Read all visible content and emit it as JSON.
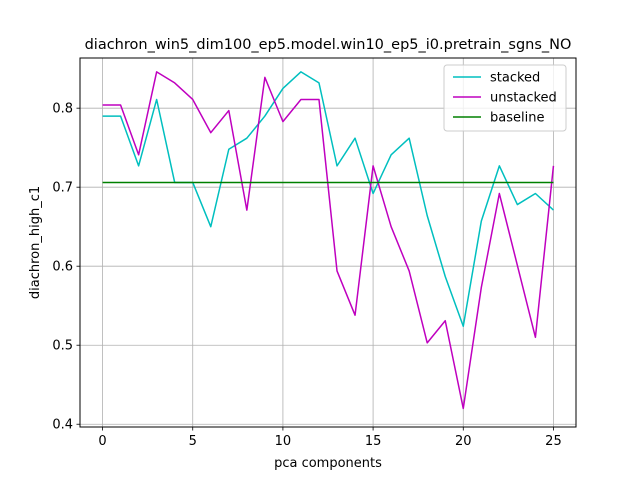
{
  "chart_data": {
    "type": "line",
    "title": "diachron_win5_dim100_ep5.model.win10_ep5_i0.pretrain_sgns_NO",
    "xlabel": "pca components",
    "ylabel": "diachron_high_c1",
    "xlim": [
      -1.25,
      26.25
    ],
    "ylim": [
      0.3965,
      0.8635
    ],
    "xticks": [
      0,
      5,
      10,
      15,
      20,
      25
    ],
    "xtick_labels": [
      "0",
      "5",
      "10",
      "15",
      "20",
      "25"
    ],
    "yticks": [
      0.4,
      0.5,
      0.6,
      0.7,
      0.8
    ],
    "ytick_labels": [
      "0.4",
      "0.5",
      "0.6",
      "0.7",
      "0.8"
    ],
    "grid": true,
    "legend_position": "top-right",
    "x": [
      0,
      1,
      2,
      3,
      4,
      5,
      6,
      7,
      8,
      9,
      10,
      11,
      12,
      13,
      14,
      15,
      16,
      17,
      18,
      19,
      20,
      21,
      22,
      23,
      24,
      25
    ],
    "series": [
      {
        "name": "stacked",
        "color": "#00bfbf",
        "values": [
          0.79,
          0.79,
          0.727,
          0.811,
          0.706,
          0.706,
          0.65,
          0.748,
          0.762,
          0.79,
          0.825,
          0.846,
          0.832,
          0.727,
          0.762,
          0.692,
          0.741,
          0.762,
          0.664,
          0.587,
          0.524,
          0.657,
          0.727,
          0.678,
          0.692,
          0.671
        ]
      },
      {
        "name": "unstacked",
        "color": "#bf00bf",
        "values": [
          0.804,
          0.804,
          0.741,
          0.846,
          0.832,
          0.811,
          0.769,
          0.797,
          0.671,
          0.839,
          0.783,
          0.811,
          0.811,
          0.594,
          0.538,
          0.727,
          0.65,
          0.594,
          0.503,
          0.531,
          0.42,
          0.573,
          0.692,
          0.601,
          0.51,
          0.727
        ]
      },
      {
        "name": "baseline",
        "color": "#008000",
        "values": [
          0.706,
          0.706,
          0.706,
          0.706,
          0.706,
          0.706,
          0.706,
          0.706,
          0.706,
          0.706,
          0.706,
          0.706,
          0.706,
          0.706,
          0.706,
          0.706,
          0.706,
          0.706,
          0.706,
          0.706,
          0.706,
          0.706,
          0.706,
          0.706,
          0.706,
          0.706
        ]
      }
    ]
  }
}
